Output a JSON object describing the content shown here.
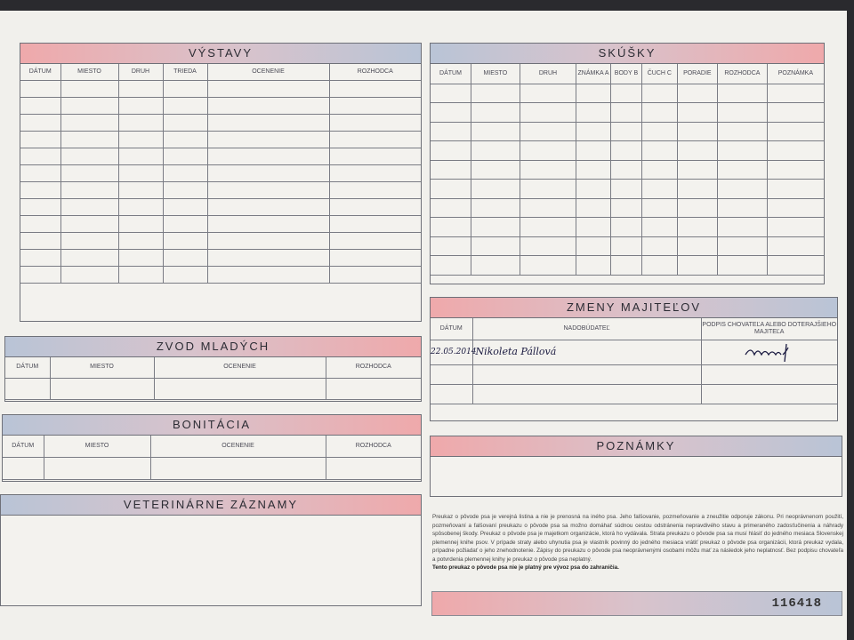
{
  "vystavy": {
    "title": "VÝSTAVY",
    "columns": [
      "DÁTUM",
      "MIESTO",
      "DRUH",
      "TRIEDA",
      "OCENENIE",
      "ROZHODCA"
    ],
    "rows": 12
  },
  "skusky": {
    "title": "SKÚŠKY",
    "columns": [
      "DÁTUM",
      "MIESTO",
      "DRUH",
      "ZNÁMKA A",
      "BODY B",
      "ČUCH C",
      "PORADIE",
      "ROZHODCA",
      "POZNÁMKA"
    ],
    "rows": 10
  },
  "zvod": {
    "title": "ZVOD MLADÝCH",
    "columns": [
      "DÁTUM",
      "MIESTO",
      "OCENENIE",
      "ROZHODCA"
    ],
    "rows": 1
  },
  "bonitacia": {
    "title": "BONITÁCIA",
    "columns": [
      "DÁTUM",
      "MIESTO",
      "OCENENIE",
      "ROZHODCA"
    ],
    "rows": 1
  },
  "veterinarne": {
    "title": "VETERINÁRNE ZÁZNAMY"
  },
  "zmeny": {
    "title": "ZMENY MAJITEĽOV",
    "columns": [
      "DÁTUM",
      "NADOBÚDATEĽ",
      "PODPIS CHOVATEĽA ALEBO DOTERAJŠIEHO MAJITEĽA"
    ],
    "entries": [
      {
        "date": "22.05.2014",
        "owner": "Nikoleta Pállová",
        "signature": "handwritten signature"
      }
    ],
    "rows": 3
  },
  "poznamky": {
    "title": "POZNÁMKY"
  },
  "fine_print": "Preukaz o pôvode psa je verejná listina a nie je prenosná na iného psa. Jeho falšovanie, pozmeňovanie a zneužitie odporuje zákonu. Pri neoprávnenom použití, pozmeňovaní a falšovaní preukazu o pôvode psa sa možno domáhať súdnou cestou odstránenia nepravdivého stavu a primeraného zadosťučinenia a náhrady spôsobenej škody. Preukaz o pôvode psa je majetkom organizácie, ktorá ho vydávala. Strata preukazu o pôvode psa sa musí hlásiť do jedného mesiaca Slovenskej plemennej knihe psov. V prípade straty alebo uhynutia psa je vlastník povinný do jedného mesiaca vrátiť preukaz o pôvode psa organizácii, ktorá preukaz vydala, prípadne požiadať o jeho znehodnotenie. Zápisy do preukazu o pôvode psa neoprávnenými osobami môžu mať za následok jeho neplatnosť. Bez podpisu chovateľa a potvrdenia plemennej knihy je preukaz o pôvode psa neplatný.",
  "fine_print_bold": "Tento preukaz o pôvode psa nie je platný pre vývoz psa do zahraničia.",
  "serial_number": "116418",
  "colors": {
    "header_blue": "#b9c4d6",
    "header_pink": "#efa9ab",
    "paper": "#f1f0ec"
  }
}
